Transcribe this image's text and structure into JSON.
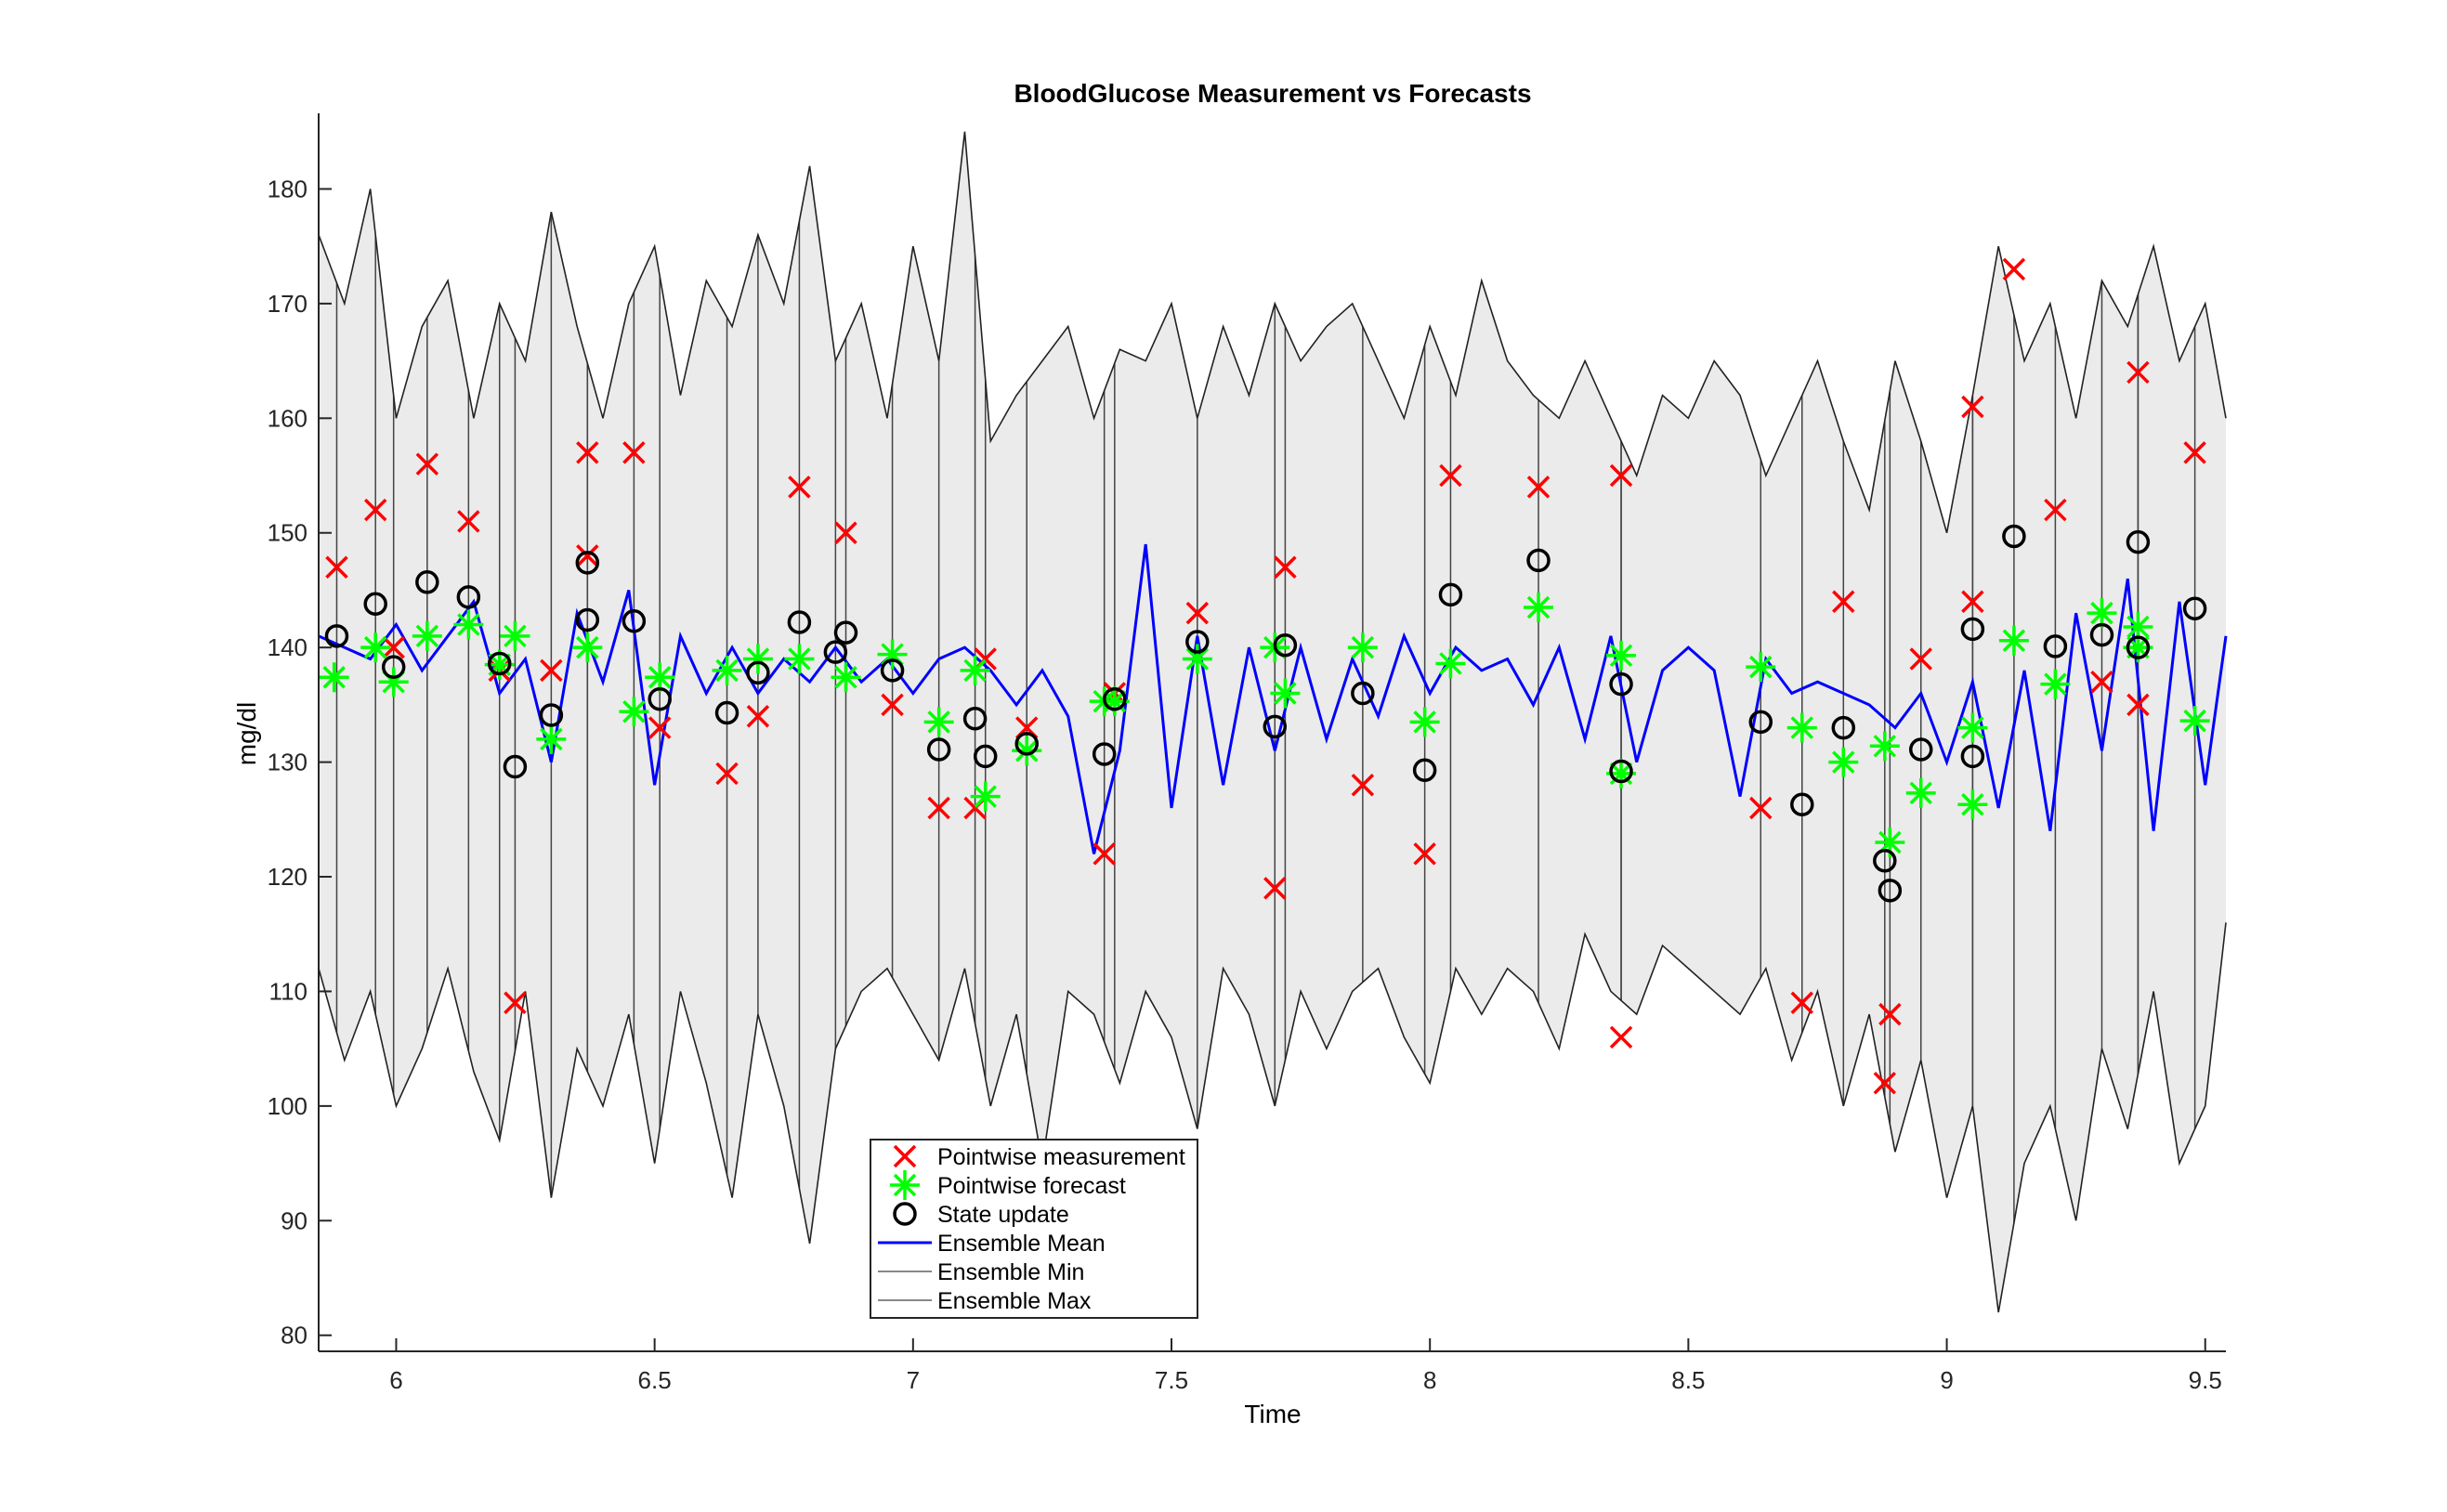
{
  "chart_data": {
    "type": "scatter",
    "title": "BloodGlucose Measurement vs Forecasts",
    "xlabel": "Time",
    "ylabel": "mg/dl",
    "xlim": [
      5.85,
      9.54
    ],
    "ylim": [
      78.6,
      186.6
    ],
    "xticks": [
      6,
      6.5,
      7,
      7.5,
      8,
      8.5,
      9,
      9.5
    ],
    "xtick_labels": [
      "6",
      "6.5",
      "7",
      "7.5",
      "8",
      "8.5",
      "9",
      "9.5"
    ],
    "yticks": [
      80,
      90,
      100,
      110,
      120,
      130,
      140,
      150,
      160,
      170,
      180
    ],
    "ytick_labels": [
      "80",
      "90",
      "100",
      "110",
      "120",
      "130",
      "140",
      "150",
      "160",
      "170",
      "180"
    ],
    "grid": false,
    "legend_position": "bottom-center",
    "colors": {
      "measurement": "#ff0000",
      "forecast": "#00ff00",
      "state": "#000000",
      "mean": "#0000ff",
      "minmax": "#555555",
      "band": "#ebebeb"
    },
    "series": [
      {
        "name": "Pointwise measurement",
        "marker": "x",
        "x": [
          5.885,
          5.96,
          5.995,
          6.06,
          6.14,
          6.2,
          6.23,
          6.3,
          6.37,
          6.37,
          6.46,
          6.51,
          6.64,
          6.7,
          6.78,
          6.87,
          6.96,
          7.05,
          7.12,
          7.14,
          7.22,
          7.37,
          7.39,
          7.55,
          7.7,
          7.72,
          7.87,
          7.99,
          8.04,
          8.21,
          8.37,
          8.37,
          8.64,
          8.72,
          8.8,
          8.88,
          8.89,
          8.95,
          9.05,
          9.05,
          9.13,
          9.21,
          9.3,
          9.37,
          9.37,
          9.48
        ],
        "y": [
          147,
          152,
          140,
          156,
          151,
          138,
          109,
          138,
          157,
          148,
          157,
          133,
          129,
          134,
          154,
          150,
          135,
          126,
          126,
          139,
          133,
          122,
          136,
          143,
          119,
          147,
          128,
          122,
          155,
          154,
          106,
          155,
          126,
          109,
          144,
          102,
          108,
          139,
          144,
          161,
          173,
          152,
          137,
          135,
          164,
          157
        ]
      },
      {
        "name": "Pointwise forecast",
        "marker": "star",
        "x": [
          5.88,
          5.96,
          5.995,
          6.06,
          6.14,
          6.2,
          6.23,
          6.3,
          6.37,
          6.46,
          6.51,
          6.64,
          6.7,
          6.78,
          6.87,
          6.96,
          7.05,
          7.12,
          7.14,
          7.22,
          7.37,
          7.39,
          7.55,
          7.7,
          7.72,
          7.87,
          7.99,
          8.04,
          8.21,
          8.37,
          8.37,
          8.64,
          8.72,
          8.8,
          8.88,
          8.89,
          8.95,
          9.05,
          9.05,
          9.13,
          9.21,
          9.3,
          9.37,
          9.37,
          9.48
        ],
        "y": [
          137.4,
          140,
          137,
          141,
          142,
          138.5,
          141,
          132,
          140,
          134.4,
          137.4,
          138,
          139,
          139,
          137.4,
          139.4,
          133.5,
          138,
          127,
          131,
          135.3,
          135.3,
          139,
          140,
          136,
          140,
          133.5,
          138.6,
          143.5,
          139.3,
          129,
          138.3,
          133,
          130,
          131.4,
          123,
          127.3,
          133,
          126.3,
          140.6,
          136.8,
          143,
          141.8,
          140,
          133.6
        ]
      },
      {
        "name": "State update",
        "marker": "circle",
        "x": [
          5.885,
          5.96,
          5.995,
          6.06,
          6.14,
          6.2,
          6.23,
          6.3,
          6.37,
          6.37,
          6.46,
          6.51,
          6.64,
          6.7,
          6.78,
          6.85,
          6.87,
          6.96,
          7.05,
          7.12,
          7.14,
          7.22,
          7.37,
          7.39,
          7.55,
          7.7,
          7.72,
          7.87,
          7.99,
          8.04,
          8.21,
          8.37,
          8.37,
          8.64,
          8.72,
          8.8,
          8.88,
          8.89,
          8.95,
          9.05,
          9.05,
          9.13,
          9.21,
          9.3,
          9.37,
          9.37,
          9.48
        ],
        "y": [
          141,
          143.8,
          138.3,
          145.7,
          144.4,
          138.6,
          129.6,
          134.1,
          147.4,
          142.4,
          142.3,
          135.5,
          134.3,
          137.8,
          142.2,
          139.6,
          141.3,
          138,
          131.1,
          133.8,
          130.5,
          131.6,
          130.7,
          135.5,
          140.5,
          133.1,
          140.2,
          136,
          129.3,
          144.6,
          147.6,
          129.2,
          136.8,
          133.5,
          126.3,
          133,
          121.4,
          118.8,
          131.1,
          130.5,
          141.6,
          149.7,
          140.1,
          141.1,
          140,
          149.2,
          143.4
        ]
      },
      {
        "name": "Ensemble Mean",
        "type": "line",
        "x_start": 5.85,
        "x_step": 0.05,
        "y": [
          141,
          140,
          139,
          142,
          138,
          141,
          144,
          136,
          139,
          130,
          143,
          137,
          145,
          128,
          141,
          136,
          140,
          136,
          139,
          137,
          140,
          137,
          139,
          136,
          139,
          140,
          138,
          135,
          138,
          134,
          122,
          131,
          149,
          126,
          141,
          128,
          140,
          131,
          140,
          132,
          139,
          134,
          141,
          136,
          140,
          138,
          139,
          135,
          140,
          132,
          141,
          130,
          138,
          140,
          138,
          127,
          139,
          136,
          137,
          136,
          135,
          133,
          136,
          130,
          137,
          126,
          138,
          124,
          143,
          131,
          146,
          124,
          144,
          128,
          141
        ]
      },
      {
        "name": "Ensemble Min",
        "type": "line",
        "x_start": 5.85,
        "x_step": 0.05,
        "y": [
          112,
          104,
          110,
          100,
          105,
          112,
          103,
          97,
          110,
          92,
          105,
          100,
          108,
          95,
          110,
          102,
          92,
          108,
          100,
          88,
          105,
          110,
          112,
          108,
          104,
          112,
          100,
          108,
          95,
          110,
          108,
          102,
          110,
          106,
          98,
          112,
          108,
          100,
          110,
          105,
          110,
          112,
          106,
          102,
          112,
          108,
          112,
          110,
          105,
          115,
          110,
          108,
          114,
          112,
          110,
          108,
          112,
          104,
          110,
          100,
          108,
          96,
          104,
          92,
          100,
          82,
          95,
          100,
          90,
          105,
          98,
          110,
          95,
          100,
          116
        ]
      },
      {
        "name": "Ensemble Max",
        "type": "line",
        "x_start": 5.85,
        "x_step": 0.05,
        "y": [
          176,
          170,
          180,
          160,
          168,
          172,
          160,
          170,
          165,
          178,
          168,
          160,
          170,
          175,
          162,
          172,
          168,
          176,
          170,
          182,
          165,
          170,
          160,
          175,
          165,
          185,
          158,
          162,
          165,
          168,
          160,
          166,
          165,
          170,
          160,
          168,
          162,
          170,
          165,
          168,
          170,
          165,
          160,
          168,
          162,
          172,
          165,
          162,
          160,
          165,
          160,
          155,
          162,
          160,
          165,
          162,
          155,
          160,
          165,
          158,
          152,
          165,
          158,
          150,
          162,
          175,
          165,
          170,
          160,
          172,
          168,
          175,
          165,
          170,
          160
        ]
      }
    ]
  }
}
